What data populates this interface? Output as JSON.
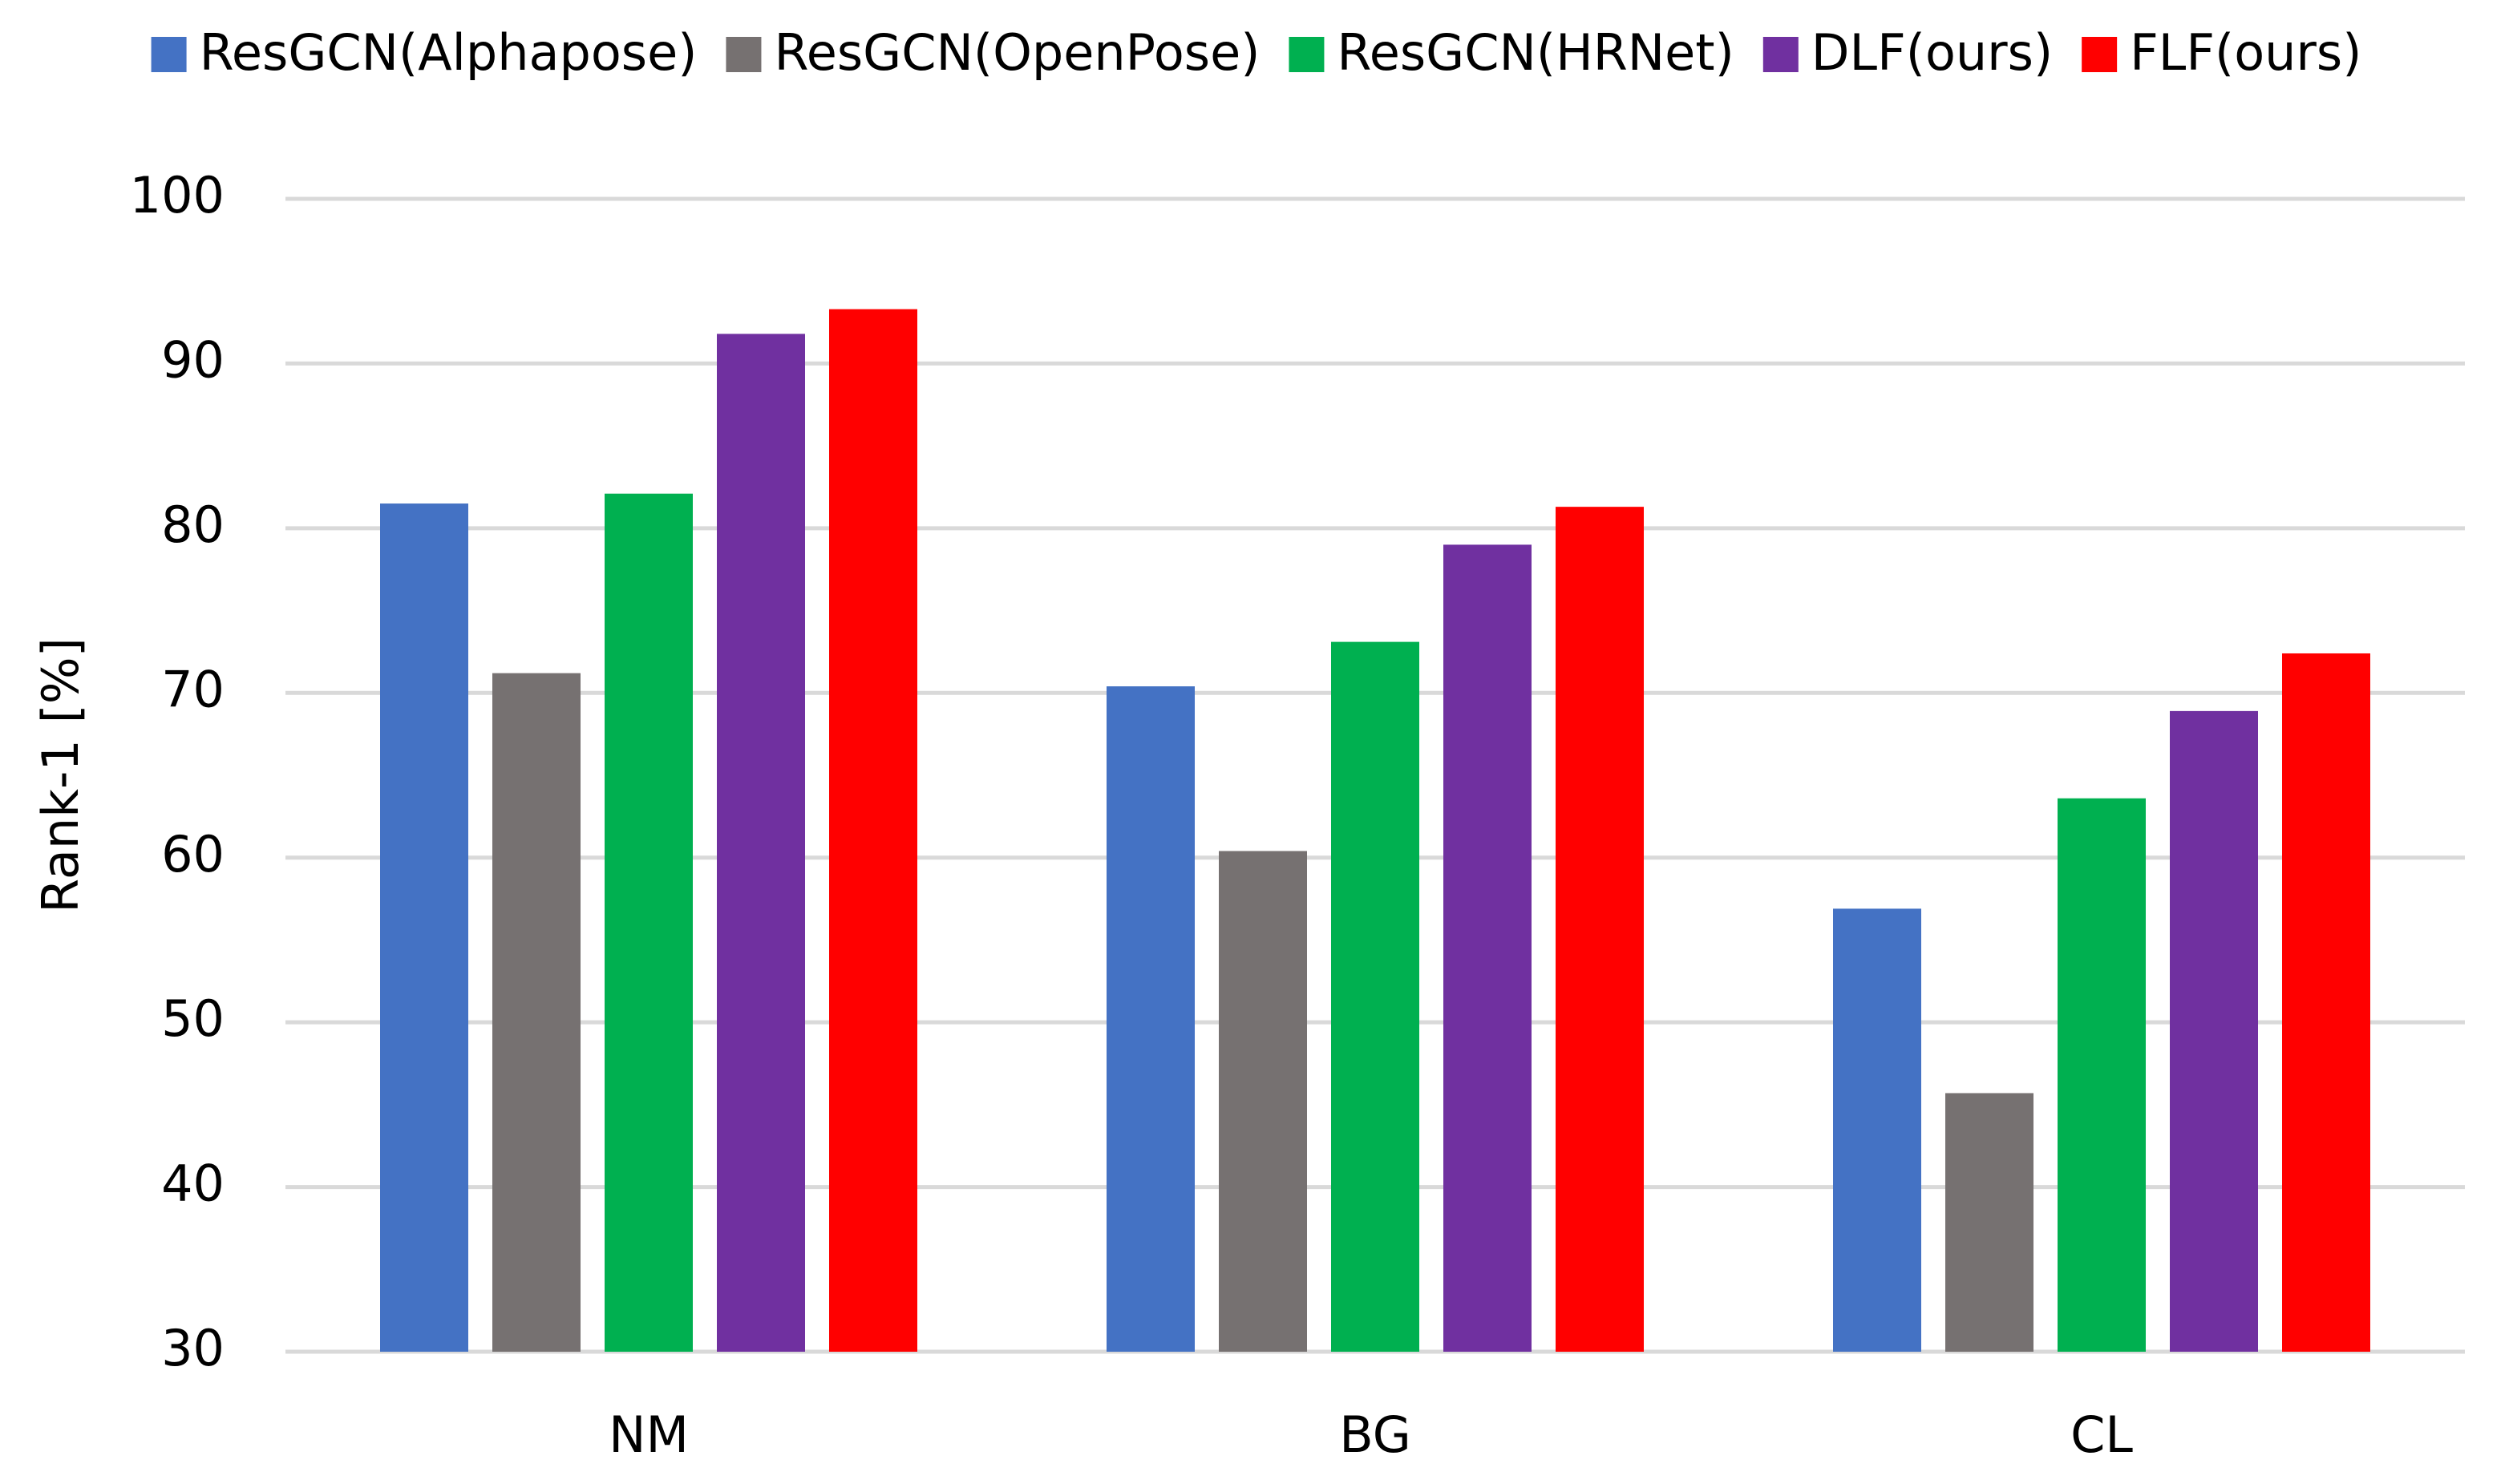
{
  "chart_data": {
    "type": "bar",
    "y_label": "Rank-1 [%]",
    "categories": [
      "NM",
      "BG",
      "CL"
    ],
    "series": [
      {
        "name": "ResGCN(Alphapose)",
        "color": "#4472c4",
        "values": [
          81.5,
          70.4,
          56.9
        ]
      },
      {
        "name": "ResGCN(OpenPose)",
        "color": "#767171",
        "values": [
          71.2,
          60.4,
          45.7
        ]
      },
      {
        "name": "ResGCN(HRNet)",
        "color": "#00b050",
        "values": [
          82.1,
          73.1,
          63.6
        ]
      },
      {
        "name": "DLF(ours)",
        "color": "#7030a0",
        "values": [
          91.8,
          79.0,
          68.9
        ]
      },
      {
        "name": "FLF(ours)",
        "color": "#ff0000",
        "values": [
          93.3,
          81.3,
          72.4
        ]
      }
    ],
    "ylim": [
      30,
      100
    ],
    "yticks": [
      30,
      40,
      50,
      60,
      70,
      80,
      90,
      100
    ],
    "grid": true,
    "legend": "top"
  }
}
